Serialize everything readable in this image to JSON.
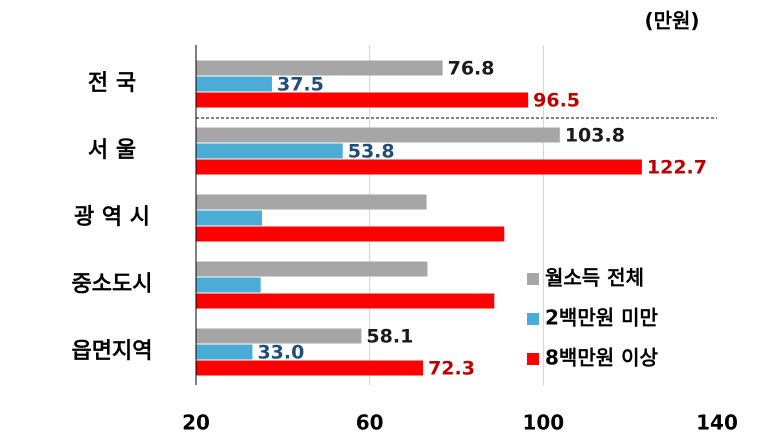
{
  "chart_data": {
    "type": "barh",
    "unit": "(만원)",
    "categories": [
      "전 국",
      "서 울",
      "광 역 시",
      "중소도시",
      "읍면지역"
    ],
    "series": [
      {
        "name": "월소득 전체",
        "color": "#a6a6a6",
        "label_color": "#1a1a1a",
        "values": [
          76.8,
          103.8,
          73.1,
          73.3,
          58.1
        ],
        "value_labels": [
          "76.8",
          "103.8",
          null,
          null,
          "58.1"
        ]
      },
      {
        "name": "2백만원 미만",
        "color": "#4bacd6",
        "label_color": "#1f4e79",
        "values": [
          37.5,
          53.8,
          35.2,
          34.9,
          33.0
        ],
        "value_labels": [
          "37.5",
          "53.8",
          null,
          null,
          "33.0"
        ]
      },
      {
        "name": "8백만원 이상",
        "color": "#ff0000",
        "label_color": "#c00000",
        "values": [
          96.5,
          122.7,
          91.0,
          88.7,
          72.3
        ],
        "value_labels": [
          "96.5",
          "122.7",
          null,
          null,
          "72.3"
        ]
      }
    ],
    "xlim": [
      20,
      140
    ],
    "xticks": [
      20,
      60,
      100,
      140
    ],
    "grid": true
  }
}
